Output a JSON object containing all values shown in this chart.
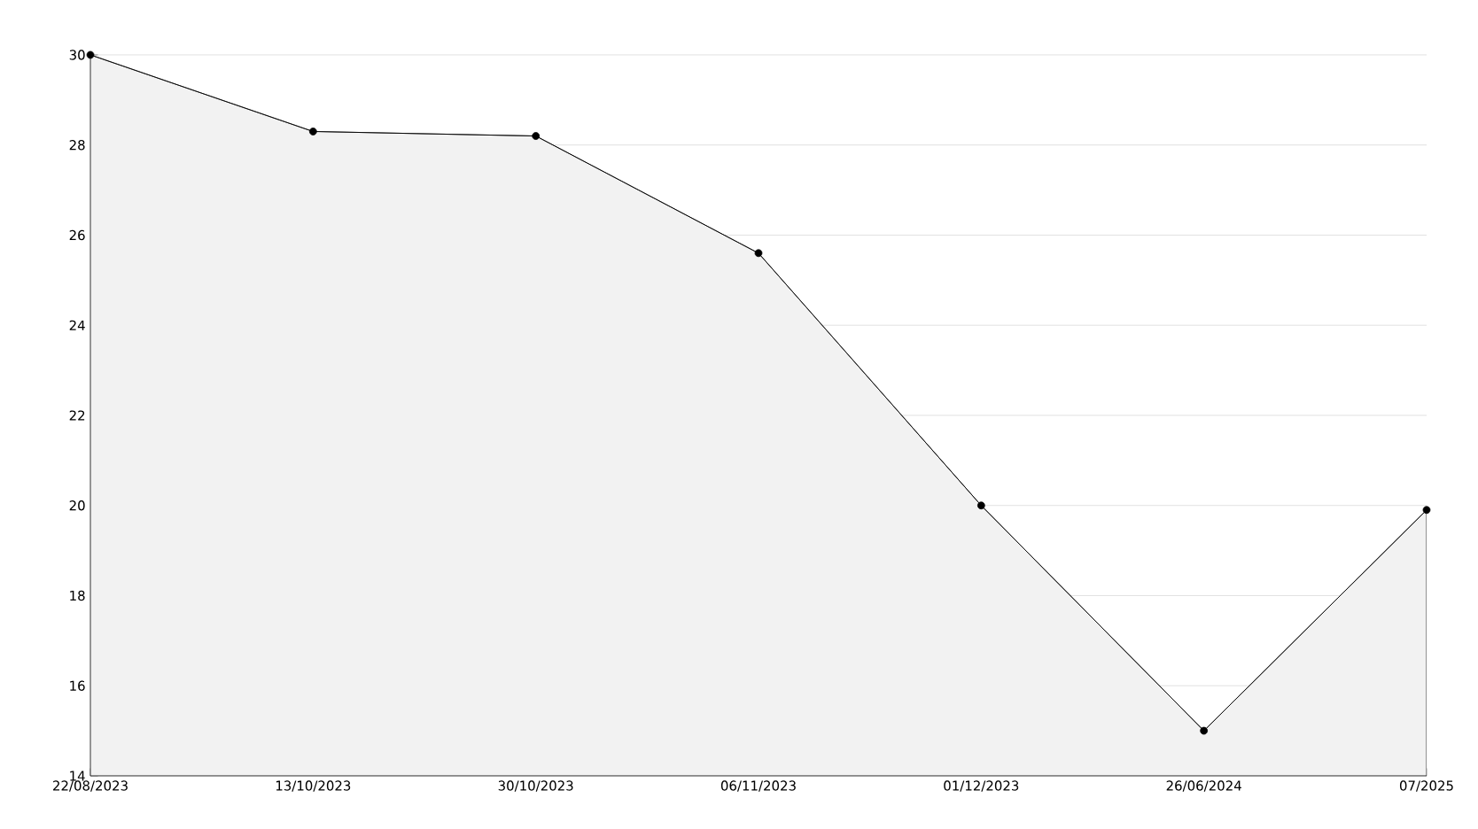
{
  "chart_data": {
    "type": "area",
    "categories": [
      "22/08/2023",
      "13/10/2023",
      "30/10/2023",
      "06/11/2023",
      "01/12/2023",
      "26/06/2024",
      "07/2025"
    ],
    "values": [
      30,
      28.3,
      28.2,
      25.6,
      20,
      15,
      19.9
    ],
    "color": "#f2f2f2",
    "ylim": [
      14,
      30
    ],
    "yticks": [
      14,
      16,
      18,
      20,
      22,
      24,
      26,
      28,
      30
    ],
    "grid": "y",
    "marker": "circle",
    "line_style": "solid"
  }
}
